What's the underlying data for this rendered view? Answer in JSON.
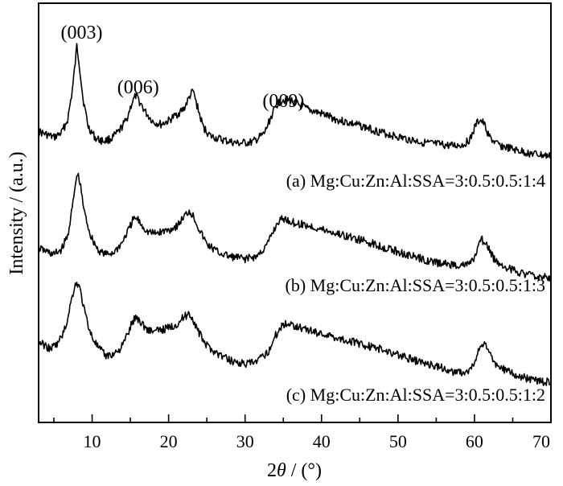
{
  "chart_data": {
    "type": "line",
    "xlabel_prefix": "2",
    "xlabel_var": "θ",
    "xlabel_suffix": " / (°)",
    "ylabel": "Intensity / (a.u.)",
    "xlim": [
      3,
      70
    ],
    "x_ticks": [
      10,
      20,
      30,
      40,
      50,
      60,
      70
    ],
    "y_ticks_labeled": false,
    "grid": false,
    "peak_labels": [
      {
        "text": "(003)",
        "x": 8.0
      },
      {
        "text": "(006)",
        "x": 15.8
      },
      {
        "text": "(009)",
        "x": 34.8
      }
    ],
    "series": [
      {
        "name": "(a) Mg:Cu:Zn:Al:SSA=3:0.5:0.5:1:4",
        "x": [
          3,
          5,
          6,
          6.8,
          7.4,
          7.8,
          8.0,
          8.3,
          8.8,
          9.5,
          10.5,
          11.5,
          12.5,
          13.5,
          14.5,
          15.2,
          15.7,
          16.3,
          17.0,
          18.0,
          19.0,
          20.0,
          21.0,
          22.0,
          22.8,
          23.2,
          23.8,
          24.5,
          25.5,
          27,
          29,
          31,
          32.5,
          33.5,
          34.3,
          35.0,
          36.0,
          38,
          40,
          42,
          45,
          48,
          51,
          54,
          57,
          58.5,
          59.5,
          60.2,
          60.7,
          61.2,
          62.0,
          63,
          65,
          67,
          70
        ],
        "y": [
          0.28,
          0.23,
          0.27,
          0.38,
          0.62,
          0.86,
          1.0,
          0.86,
          0.56,
          0.32,
          0.22,
          0.2,
          0.22,
          0.28,
          0.38,
          0.52,
          0.58,
          0.52,
          0.44,
          0.36,
          0.34,
          0.37,
          0.42,
          0.47,
          0.58,
          0.62,
          0.48,
          0.32,
          0.24,
          0.21,
          0.18,
          0.19,
          0.26,
          0.42,
          0.52,
          0.55,
          0.54,
          0.47,
          0.43,
          0.38,
          0.33,
          0.27,
          0.22,
          0.18,
          0.16,
          0.17,
          0.22,
          0.34,
          0.38,
          0.35,
          0.23,
          0.17,
          0.13,
          0.1,
          0.07
        ]
      },
      {
        "name": "(b) Mg:Cu:Zn:Al:SSA=3:0.5:0.5:1:3",
        "x": [
          3,
          5,
          6,
          6.8,
          7.4,
          7.8,
          8.1,
          8.5,
          9.0,
          9.8,
          10.8,
          11.8,
          12.8,
          13.8,
          14.8,
          15.4,
          15.9,
          16.5,
          17.2,
          18.2,
          19.2,
          20.2,
          21.2,
          22.0,
          22.7,
          23.3,
          24.0,
          25.0,
          26.5,
          28,
          30,
          31.5,
          32.8,
          33.8,
          34.5,
          35.2,
          36.5,
          38,
          40,
          43,
          46,
          49,
          52,
          55,
          57.5,
          59,
          60,
          60.5,
          61,
          61.7,
          62.5,
          64,
          66,
          68,
          70
        ],
        "y": [
          0.28,
          0.22,
          0.27,
          0.4,
          0.66,
          0.88,
          1.0,
          0.86,
          0.62,
          0.4,
          0.26,
          0.22,
          0.24,
          0.32,
          0.46,
          0.56,
          0.56,
          0.5,
          0.44,
          0.42,
          0.44,
          0.46,
          0.5,
          0.58,
          0.64,
          0.58,
          0.46,
          0.32,
          0.24,
          0.2,
          0.18,
          0.2,
          0.3,
          0.46,
          0.55,
          0.56,
          0.52,
          0.5,
          0.46,
          0.4,
          0.34,
          0.27,
          0.2,
          0.14,
          0.12,
          0.12,
          0.18,
          0.3,
          0.36,
          0.3,
          0.18,
          0.1,
          0.05,
          0.01,
          0.0
        ]
      },
      {
        "name": "(c) Mg:Cu:Zn:Al:SSA=3:0.5:0.5:1:2",
        "x": [
          3,
          4.5,
          5.5,
          6.5,
          7.2,
          7.7,
          8.0,
          8.4,
          9.0,
          9.8,
          10.8,
          11.8,
          12.8,
          13.8,
          14.7,
          15.3,
          15.8,
          16.5,
          17.2,
          18.2,
          19.2,
          20.2,
          21.2,
          22.0,
          22.7,
          23.3,
          24.0,
          25.0,
          26.5,
          28,
          30,
          31.5,
          33,
          34,
          34.8,
          35.5,
          36.5,
          38,
          40,
          43,
          46,
          49,
          52,
          55,
          57.5,
          59,
          60,
          60.6,
          61.1,
          61.8,
          62.5,
          64,
          66,
          68,
          70
        ],
        "y": [
          0.42,
          0.35,
          0.4,
          0.55,
          0.8,
          0.96,
          1.0,
          0.94,
          0.72,
          0.5,
          0.36,
          0.28,
          0.3,
          0.36,
          0.5,
          0.62,
          0.66,
          0.6,
          0.54,
          0.52,
          0.54,
          0.56,
          0.6,
          0.66,
          0.7,
          0.62,
          0.5,
          0.38,
          0.3,
          0.24,
          0.2,
          0.22,
          0.32,
          0.48,
          0.58,
          0.6,
          0.58,
          0.54,
          0.5,
          0.44,
          0.38,
          0.32,
          0.24,
          0.18,
          0.12,
          0.12,
          0.2,
          0.34,
          0.4,
          0.34,
          0.22,
          0.14,
          0.08,
          0.04,
          0.02
        ]
      }
    ]
  }
}
